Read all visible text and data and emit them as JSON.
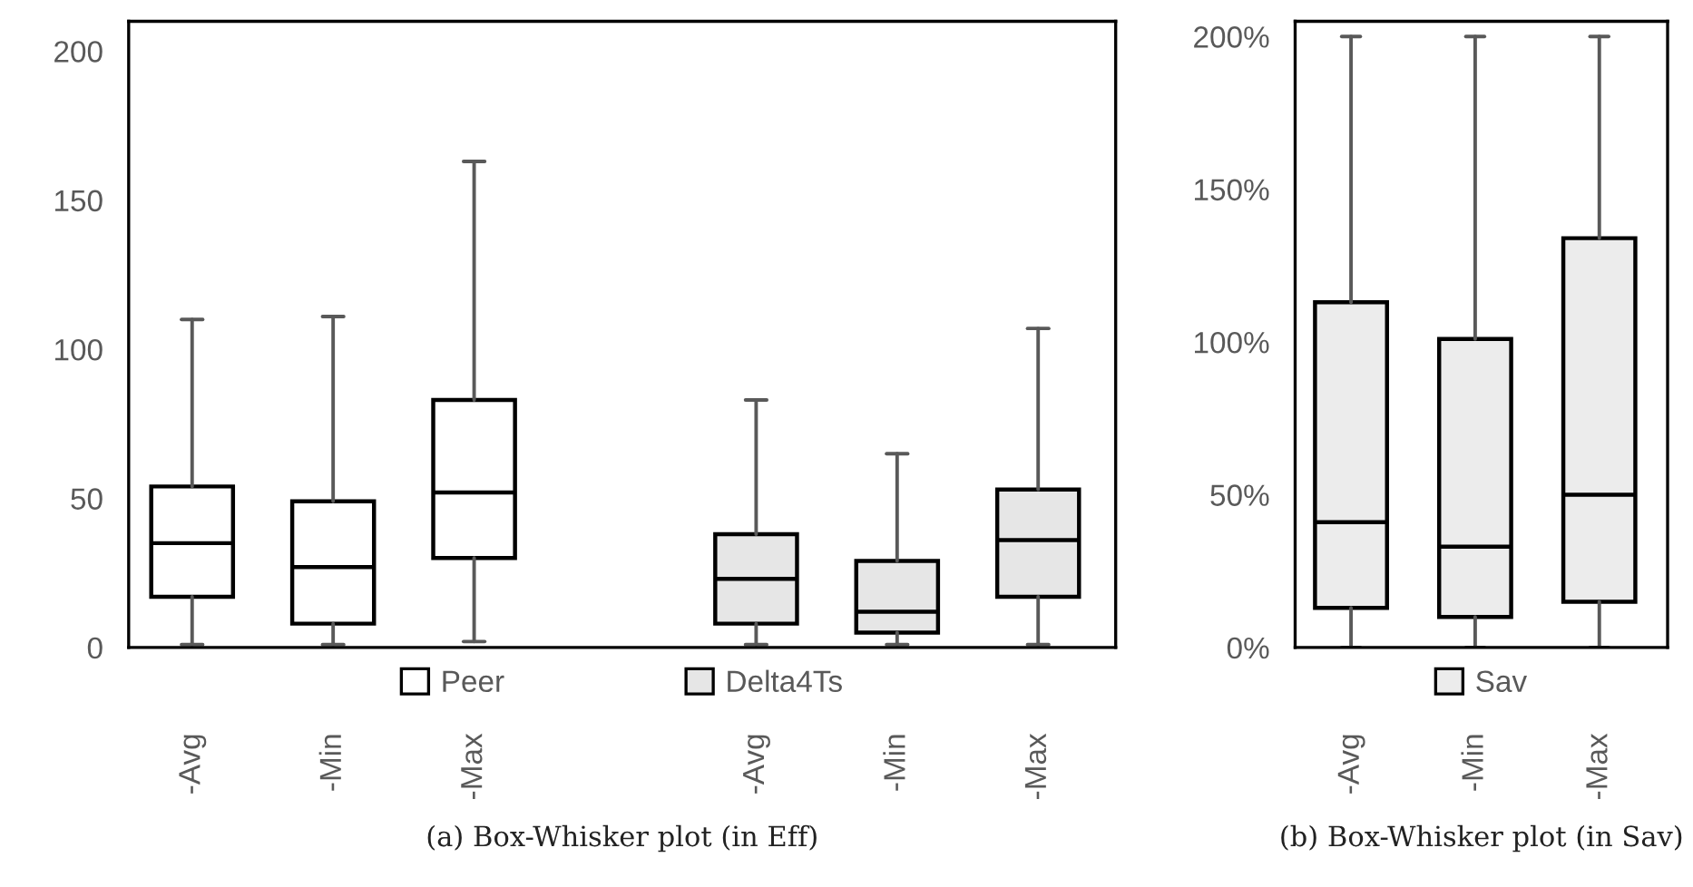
{
  "chart_data": [
    {
      "type": "box",
      "categories": [
        "-Avg",
        "-Min",
        "-Max",
        null,
        "-Avg",
        "-Min",
        "-Max"
      ],
      "ylim": [
        0,
        210
      ],
      "yticks": [
        0,
        50,
        100,
        150,
        200
      ],
      "legend": "bottom",
      "grid": false,
      "series": [
        {
          "name": "Peer",
          "color": "#ffffff",
          "boxes": [
            {
              "low": 1,
              "q1": 17,
              "median": 35,
              "q3": 54,
              "high": 110
            },
            {
              "low": 1,
              "q1": 8,
              "median": 27,
              "q3": 49,
              "high": 111
            },
            {
              "low": 2,
              "q1": 30,
              "median": 52,
              "q3": 83,
              "high": 163
            },
            null,
            null,
            null,
            null
          ]
        },
        {
          "name": "Delta4Ts",
          "color": "#e6e6e6",
          "boxes": [
            null,
            null,
            null,
            null,
            {
              "low": 1,
              "q1": 8,
              "median": 23,
              "q3": 38,
              "high": 83
            },
            {
              "low": 1,
              "q1": 5,
              "median": 12,
              "q3": 29,
              "high": 65
            },
            {
              "low": 1,
              "q1": 17,
              "median": 36,
              "q3": 53,
              "high": 107
            }
          ]
        }
      ],
      "annotations": [
        "(a) Box-Whisker plot (in Eff)"
      ]
    },
    {
      "type": "box",
      "categories": [
        "-Avg",
        "-Min",
        "-Max"
      ],
      "ylim": [
        0,
        205
      ],
      "yticks": [
        {
          "value": 0,
          "label": "0%"
        },
        {
          "value": 50,
          "label": "50%"
        },
        {
          "value": 100,
          "label": "100%"
        },
        {
          "value": 150,
          "label": "150%"
        },
        {
          "value": 200,
          "label": "200%"
        }
      ],
      "legend": "bottom",
      "grid": false,
      "series": [
        {
          "name": "Sav",
          "color": "#ececec",
          "boxes": [
            {
              "low": 0,
              "q1": 13,
              "median": 41,
              "q3": 113,
              "high": 200
            },
            {
              "low": 0,
              "q1": 10,
              "median": 33,
              "q3": 101,
              "high": 200
            },
            {
              "low": 0,
              "q1": 15,
              "median": 50,
              "q3": 134,
              "high": 200
            }
          ]
        }
      ],
      "annotations": [
        "(b) Box-Whisker plot (in Sav)"
      ]
    }
  ]
}
